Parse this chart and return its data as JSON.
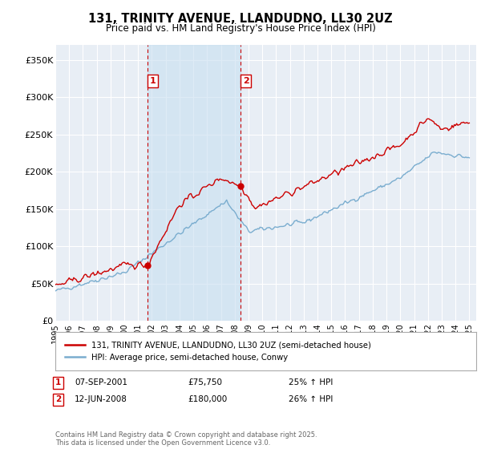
{
  "title": "131, TRINITY AVENUE, LLANDUDNO, LL30 2UZ",
  "subtitle": "Price paid vs. HM Land Registry's House Price Index (HPI)",
  "ylim": [
    0,
    370000
  ],
  "yticks": [
    0,
    50000,
    100000,
    150000,
    200000,
    250000,
    300000,
    350000
  ],
  "ytick_labels": [
    "£0",
    "£50K",
    "£100K",
    "£150K",
    "£200K",
    "£250K",
    "£300K",
    "£350K"
  ],
  "background_color": "#ffffff",
  "plot_bg_color": "#e8eef5",
  "grid_color": "#ffffff",
  "sale1_date": "07-SEP-2001",
  "sale1_price": 75750,
  "sale1_hpi": "25% ↑ HPI",
  "sale1_x": 2001.69,
  "sale2_date": "12-JUN-2008",
  "sale2_price": 180000,
  "sale2_hpi": "26% ↑ HPI",
  "sale2_x": 2008.44,
  "vline_color": "#cc0000",
  "shade_color": "#c8dff0",
  "shade_alpha": 0.6,
  "line1_color": "#cc0000",
  "line2_color": "#7aadcf",
  "legend1_label": "131, TRINITY AVENUE, LLANDUDNO, LL30 2UZ (semi-detached house)",
  "legend2_label": "HPI: Average price, semi-detached house, Conwy",
  "footer": "Contains HM Land Registry data © Crown copyright and database right 2025.\nThis data is licensed under the Open Government Licence v3.0.",
  "annotation1_label": "1",
  "annotation2_label": "2",
  "xlim_left": 1995.0,
  "xlim_right": 2025.5
}
